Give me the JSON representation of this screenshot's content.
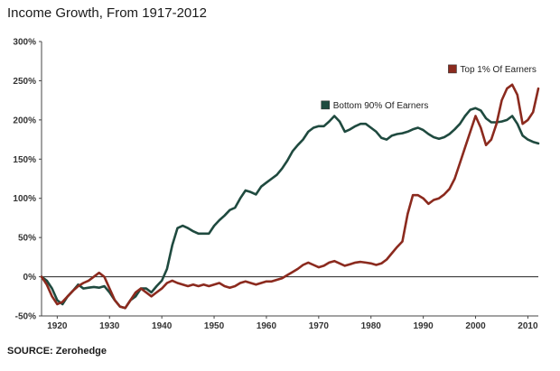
{
  "title": "Income Growth, From 1917-2012",
  "source": "SOURCE: Zerohedge",
  "chart_data": {
    "type": "line",
    "title": "Income Growth, From 1917-2012",
    "xlabel": "",
    "ylabel": "",
    "xlim": [
      1917,
      2012
    ],
    "ylim": [
      -50,
      300
    ],
    "x_ticks": [
      1920,
      1930,
      1940,
      1950,
      1960,
      1970,
      1980,
      1990,
      2000,
      2010
    ],
    "y_ticks": [
      -50,
      0,
      50,
      100,
      150,
      200,
      250,
      300
    ],
    "y_tick_labels": [
      "-50%",
      "0%",
      "50%",
      "100%",
      "150%",
      "200%",
      "250%",
      "300%"
    ],
    "grid": false,
    "legend": "inline labels",
    "series": [
      {
        "name": "Bottom 90% Of Earners",
        "color": "#1f4a3f",
        "points": [
          [
            1917,
            0
          ],
          [
            1918,
            -5
          ],
          [
            1919,
            -15
          ],
          [
            1920,
            -30
          ],
          [
            1921,
            -35
          ],
          [
            1922,
            -25
          ],
          [
            1923,
            -18
          ],
          [
            1924,
            -10
          ],
          [
            1925,
            -15
          ],
          [
            1926,
            -14
          ],
          [
            1927,
            -13
          ],
          [
            1928,
            -14
          ],
          [
            1929,
            -12
          ],
          [
            1930,
            -20
          ],
          [
            1931,
            -30
          ],
          [
            1932,
            -38
          ],
          [
            1933,
            -40
          ],
          [
            1934,
            -30
          ],
          [
            1935,
            -25
          ],
          [
            1936,
            -15
          ],
          [
            1937,
            -15
          ],
          [
            1938,
            -20
          ],
          [
            1939,
            -12
          ],
          [
            1940,
            -5
          ],
          [
            1941,
            10
          ],
          [
            1942,
            40
          ],
          [
            1943,
            62
          ],
          [
            1944,
            65
          ],
          [
            1945,
            62
          ],
          [
            1946,
            58
          ],
          [
            1947,
            55
          ],
          [
            1948,
            55
          ],
          [
            1949,
            55
          ],
          [
            1950,
            65
          ],
          [
            1951,
            72
          ],
          [
            1952,
            78
          ],
          [
            1953,
            85
          ],
          [
            1954,
            88
          ],
          [
            1955,
            100
          ],
          [
            1956,
            110
          ],
          [
            1957,
            108
          ],
          [
            1958,
            105
          ],
          [
            1959,
            115
          ],
          [
            1960,
            120
          ],
          [
            1961,
            125
          ],
          [
            1962,
            130
          ],
          [
            1963,
            138
          ],
          [
            1964,
            148
          ],
          [
            1965,
            160
          ],
          [
            1966,
            168
          ],
          [
            1967,
            175
          ],
          [
            1968,
            185
          ],
          [
            1969,
            190
          ],
          [
            1970,
            192
          ],
          [
            1971,
            192
          ],
          [
            1972,
            198
          ],
          [
            1973,
            205
          ],
          [
            1974,
            198
          ],
          [
            1975,
            185
          ],
          [
            1976,
            188
          ],
          [
            1977,
            192
          ],
          [
            1978,
            195
          ],
          [
            1979,
            195
          ],
          [
            1980,
            190
          ],
          [
            1981,
            185
          ],
          [
            1982,
            177
          ],
          [
            1983,
            175
          ],
          [
            1984,
            180
          ],
          [
            1985,
            182
          ],
          [
            1986,
            183
          ],
          [
            1987,
            185
          ],
          [
            1988,
            188
          ],
          [
            1989,
            190
          ],
          [
            1990,
            187
          ],
          [
            1991,
            182
          ],
          [
            1992,
            178
          ],
          [
            1993,
            176
          ],
          [
            1994,
            178
          ],
          [
            1995,
            182
          ],
          [
            1996,
            188
          ],
          [
            1997,
            195
          ],
          [
            1998,
            205
          ],
          [
            1999,
            213
          ],
          [
            2000,
            215
          ],
          [
            2001,
            212
          ],
          [
            2002,
            202
          ],
          [
            2003,
            197
          ],
          [
            2004,
            197
          ],
          [
            2005,
            198
          ],
          [
            2006,
            200
          ],
          [
            2007,
            205
          ],
          [
            2008,
            195
          ],
          [
            2009,
            180
          ],
          [
            2010,
            175
          ],
          [
            2011,
            172
          ],
          [
            2012,
            170
          ]
        ]
      },
      {
        "name": "Top 1% Of Earners",
        "color": "#8b2a1e",
        "points": [
          [
            1917,
            0
          ],
          [
            1918,
            -10
          ],
          [
            1919,
            -25
          ],
          [
            1920,
            -35
          ],
          [
            1921,
            -32
          ],
          [
            1922,
            -25
          ],
          [
            1923,
            -18
          ],
          [
            1924,
            -12
          ],
          [
            1925,
            -8
          ],
          [
            1926,
            -5
          ],
          [
            1927,
            0
          ],
          [
            1928,
            5
          ],
          [
            1929,
            0
          ],
          [
            1930,
            -15
          ],
          [
            1931,
            -30
          ],
          [
            1932,
            -38
          ],
          [
            1933,
            -40
          ],
          [
            1934,
            -30
          ],
          [
            1935,
            -20
          ],
          [
            1936,
            -15
          ],
          [
            1937,
            -20
          ],
          [
            1938,
            -25
          ],
          [
            1939,
            -20
          ],
          [
            1940,
            -15
          ],
          [
            1941,
            -8
          ],
          [
            1942,
            -5
          ],
          [
            1943,
            -8
          ],
          [
            1944,
            -10
          ],
          [
            1945,
            -12
          ],
          [
            1946,
            -10
          ],
          [
            1947,
            -12
          ],
          [
            1948,
            -10
          ],
          [
            1949,
            -12
          ],
          [
            1950,
            -10
          ],
          [
            1951,
            -8
          ],
          [
            1952,
            -12
          ],
          [
            1953,
            -14
          ],
          [
            1954,
            -12
          ],
          [
            1955,
            -8
          ],
          [
            1956,
            -6
          ],
          [
            1957,
            -8
          ],
          [
            1958,
            -10
          ],
          [
            1959,
            -8
          ],
          [
            1960,
            -6
          ],
          [
            1961,
            -6
          ],
          [
            1962,
            -4
          ],
          [
            1963,
            -2
          ],
          [
            1964,
            2
          ],
          [
            1965,
            6
          ],
          [
            1966,
            10
          ],
          [
            1967,
            15
          ],
          [
            1968,
            18
          ],
          [
            1969,
            15
          ],
          [
            1970,
            12
          ],
          [
            1971,
            14
          ],
          [
            1972,
            18
          ],
          [
            1973,
            20
          ],
          [
            1974,
            17
          ],
          [
            1975,
            14
          ],
          [
            1976,
            16
          ],
          [
            1977,
            18
          ],
          [
            1978,
            19
          ],
          [
            1979,
            18
          ],
          [
            1980,
            17
          ],
          [
            1981,
            15
          ],
          [
            1982,
            17
          ],
          [
            1983,
            22
          ],
          [
            1984,
            30
          ],
          [
            1985,
            38
          ],
          [
            1986,
            45
          ],
          [
            1987,
            80
          ],
          [
            1988,
            104
          ],
          [
            1989,
            104
          ],
          [
            1990,
            100
          ],
          [
            1991,
            93
          ],
          [
            1992,
            98
          ],
          [
            1993,
            100
          ],
          [
            1994,
            105
          ],
          [
            1995,
            112
          ],
          [
            1996,
            125
          ],
          [
            1997,
            145
          ],
          [
            1998,
            165
          ],
          [
            1999,
            185
          ],
          [
            2000,
            205
          ],
          [
            2001,
            190
          ],
          [
            2002,
            168
          ],
          [
            2003,
            175
          ],
          [
            2004,
            195
          ],
          [
            2005,
            225
          ],
          [
            2006,
            240
          ],
          [
            2007,
            245
          ],
          [
            2008,
            232
          ],
          [
            2009,
            195
          ],
          [
            2010,
            200
          ],
          [
            2011,
            210
          ],
          [
            2012,
            240
          ]
        ]
      }
    ]
  }
}
